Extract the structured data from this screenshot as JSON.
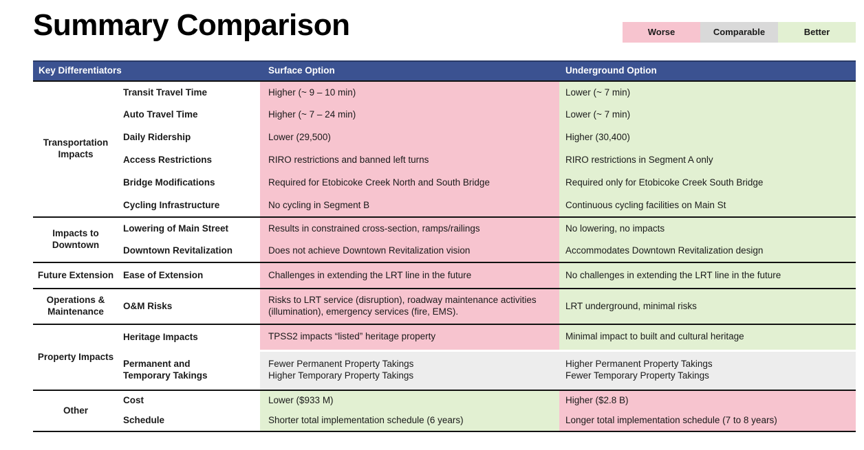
{
  "page": {
    "title": "Summary Comparison"
  },
  "legend": {
    "items": [
      {
        "label": "Worse",
        "color": "#F7C4CF"
      },
      {
        "label": "Comparable",
        "color": "#D9D9D9"
      },
      {
        "label": "Better",
        "color": "#E2F0D2"
      }
    ]
  },
  "colors": {
    "worse": "#F7C4CF",
    "comparable": "#EDEDED",
    "better": "#E2F0D2",
    "header_bg": "#3B5291"
  },
  "table": {
    "headers": [
      "Key Differentiators",
      "Surface Option",
      "Underground Option"
    ],
    "sections": [
      {
        "group": "Transportation Impacts",
        "rows": [
          {
            "label": "Transit Travel Time",
            "surface": {
              "text": "Higher (~ 9 – 10 min)",
              "rating": "worse"
            },
            "underground": {
              "text": "Lower (~ 7 min)",
              "rating": "better"
            }
          },
          {
            "label": "Auto Travel Time",
            "surface": {
              "text": "Higher (~ 7 – 24 min)",
              "rating": "worse"
            },
            "underground": {
              "text": "Lower (~ 7 min)",
              "rating": "better"
            }
          },
          {
            "label": "Daily Ridership",
            "surface": {
              "text": "Lower (29,500)",
              "rating": "worse"
            },
            "underground": {
              "text": "Higher (30,400)",
              "rating": "better"
            }
          },
          {
            "label": "Access Restrictions",
            "surface": {
              "text": "RIRO restrictions and banned left turns",
              "rating": "worse"
            },
            "underground": {
              "text": "RIRO restrictions in Segment A only",
              "rating": "better"
            }
          },
          {
            "label": "Bridge Modifications",
            "surface": {
              "text": "Required for Etobicoke Creek North and South Bridge",
              "rating": "worse"
            },
            "underground": {
              "text": "Required only for Etobicoke Creek South Bridge",
              "rating": "better"
            }
          },
          {
            "label": "Cycling Infrastructure",
            "surface": {
              "text": "No cycling in Segment B",
              "rating": "worse"
            },
            "underground": {
              "text": "Continuous cycling facilities on Main St",
              "rating": "better"
            }
          }
        ]
      },
      {
        "group": "Impacts to Downtown",
        "rows": [
          {
            "label": "Lowering of Main Street",
            "surface": {
              "text": "Results in constrained cross-section, ramps/railings",
              "rating": "worse"
            },
            "underground": {
              "text": "No lowering, no impacts",
              "rating": "better"
            }
          },
          {
            "label": "Downtown Revitalization",
            "surface": {
              "text": "Does not achieve Downtown Revitalization vision",
              "rating": "worse"
            },
            "underground": {
              "text": "Accommodates Downtown Revitalization design",
              "rating": "better"
            }
          }
        ]
      },
      {
        "group": "Future Extension",
        "rows": [
          {
            "label": "Ease of Extension",
            "surface": {
              "text": "Challenges in extending the LRT line in the future",
              "rating": "worse"
            },
            "underground": {
              "text": "No challenges in extending the LRT line in the future",
              "rating": "better"
            }
          }
        ]
      },
      {
        "group": "Operations & Maintenance",
        "rows": [
          {
            "label": "O&M Risks",
            "surface": {
              "text": "Risks to LRT service (disruption), roadway maintenance activities (illumination), emergency services (fire, EMS).",
              "rating": "worse"
            },
            "underground": {
              "text": "LRT underground, minimal risks",
              "rating": "better"
            }
          }
        ]
      },
      {
        "group": "Property Impacts",
        "rows": [
          {
            "label": "Heritage Impacts",
            "surface": {
              "text": "TPSS2 impacts “listed” heritage property",
              "rating": "worse"
            },
            "underground": {
              "text": "Minimal impact to built and cultural heritage",
              "rating": "better"
            }
          },
          {
            "label": "Permanent and\nTemporary Takings",
            "surface": {
              "text": "Fewer Permanent Property Takings\nHigher Temporary Property Takings",
              "rating": "comparable"
            },
            "underground": {
              "text": "Higher Permanent Property Takings\nFewer Temporary Property Takings",
              "rating": "comparable"
            }
          }
        ]
      },
      {
        "group": "Other",
        "rows": [
          {
            "label": "Cost",
            "surface": {
              "text": "Lower ($933 M)",
              "rating": "better"
            },
            "underground": {
              "text": "Higher ($2.8 B)",
              "rating": "worse"
            }
          },
          {
            "label": "Schedule",
            "surface": {
              "text": "Shorter total implementation schedule (6 years)",
              "rating": "better"
            },
            "underground": {
              "text": "Longer total implementation schedule (7 to 8 years)",
              "rating": "worse"
            }
          }
        ]
      }
    ]
  }
}
